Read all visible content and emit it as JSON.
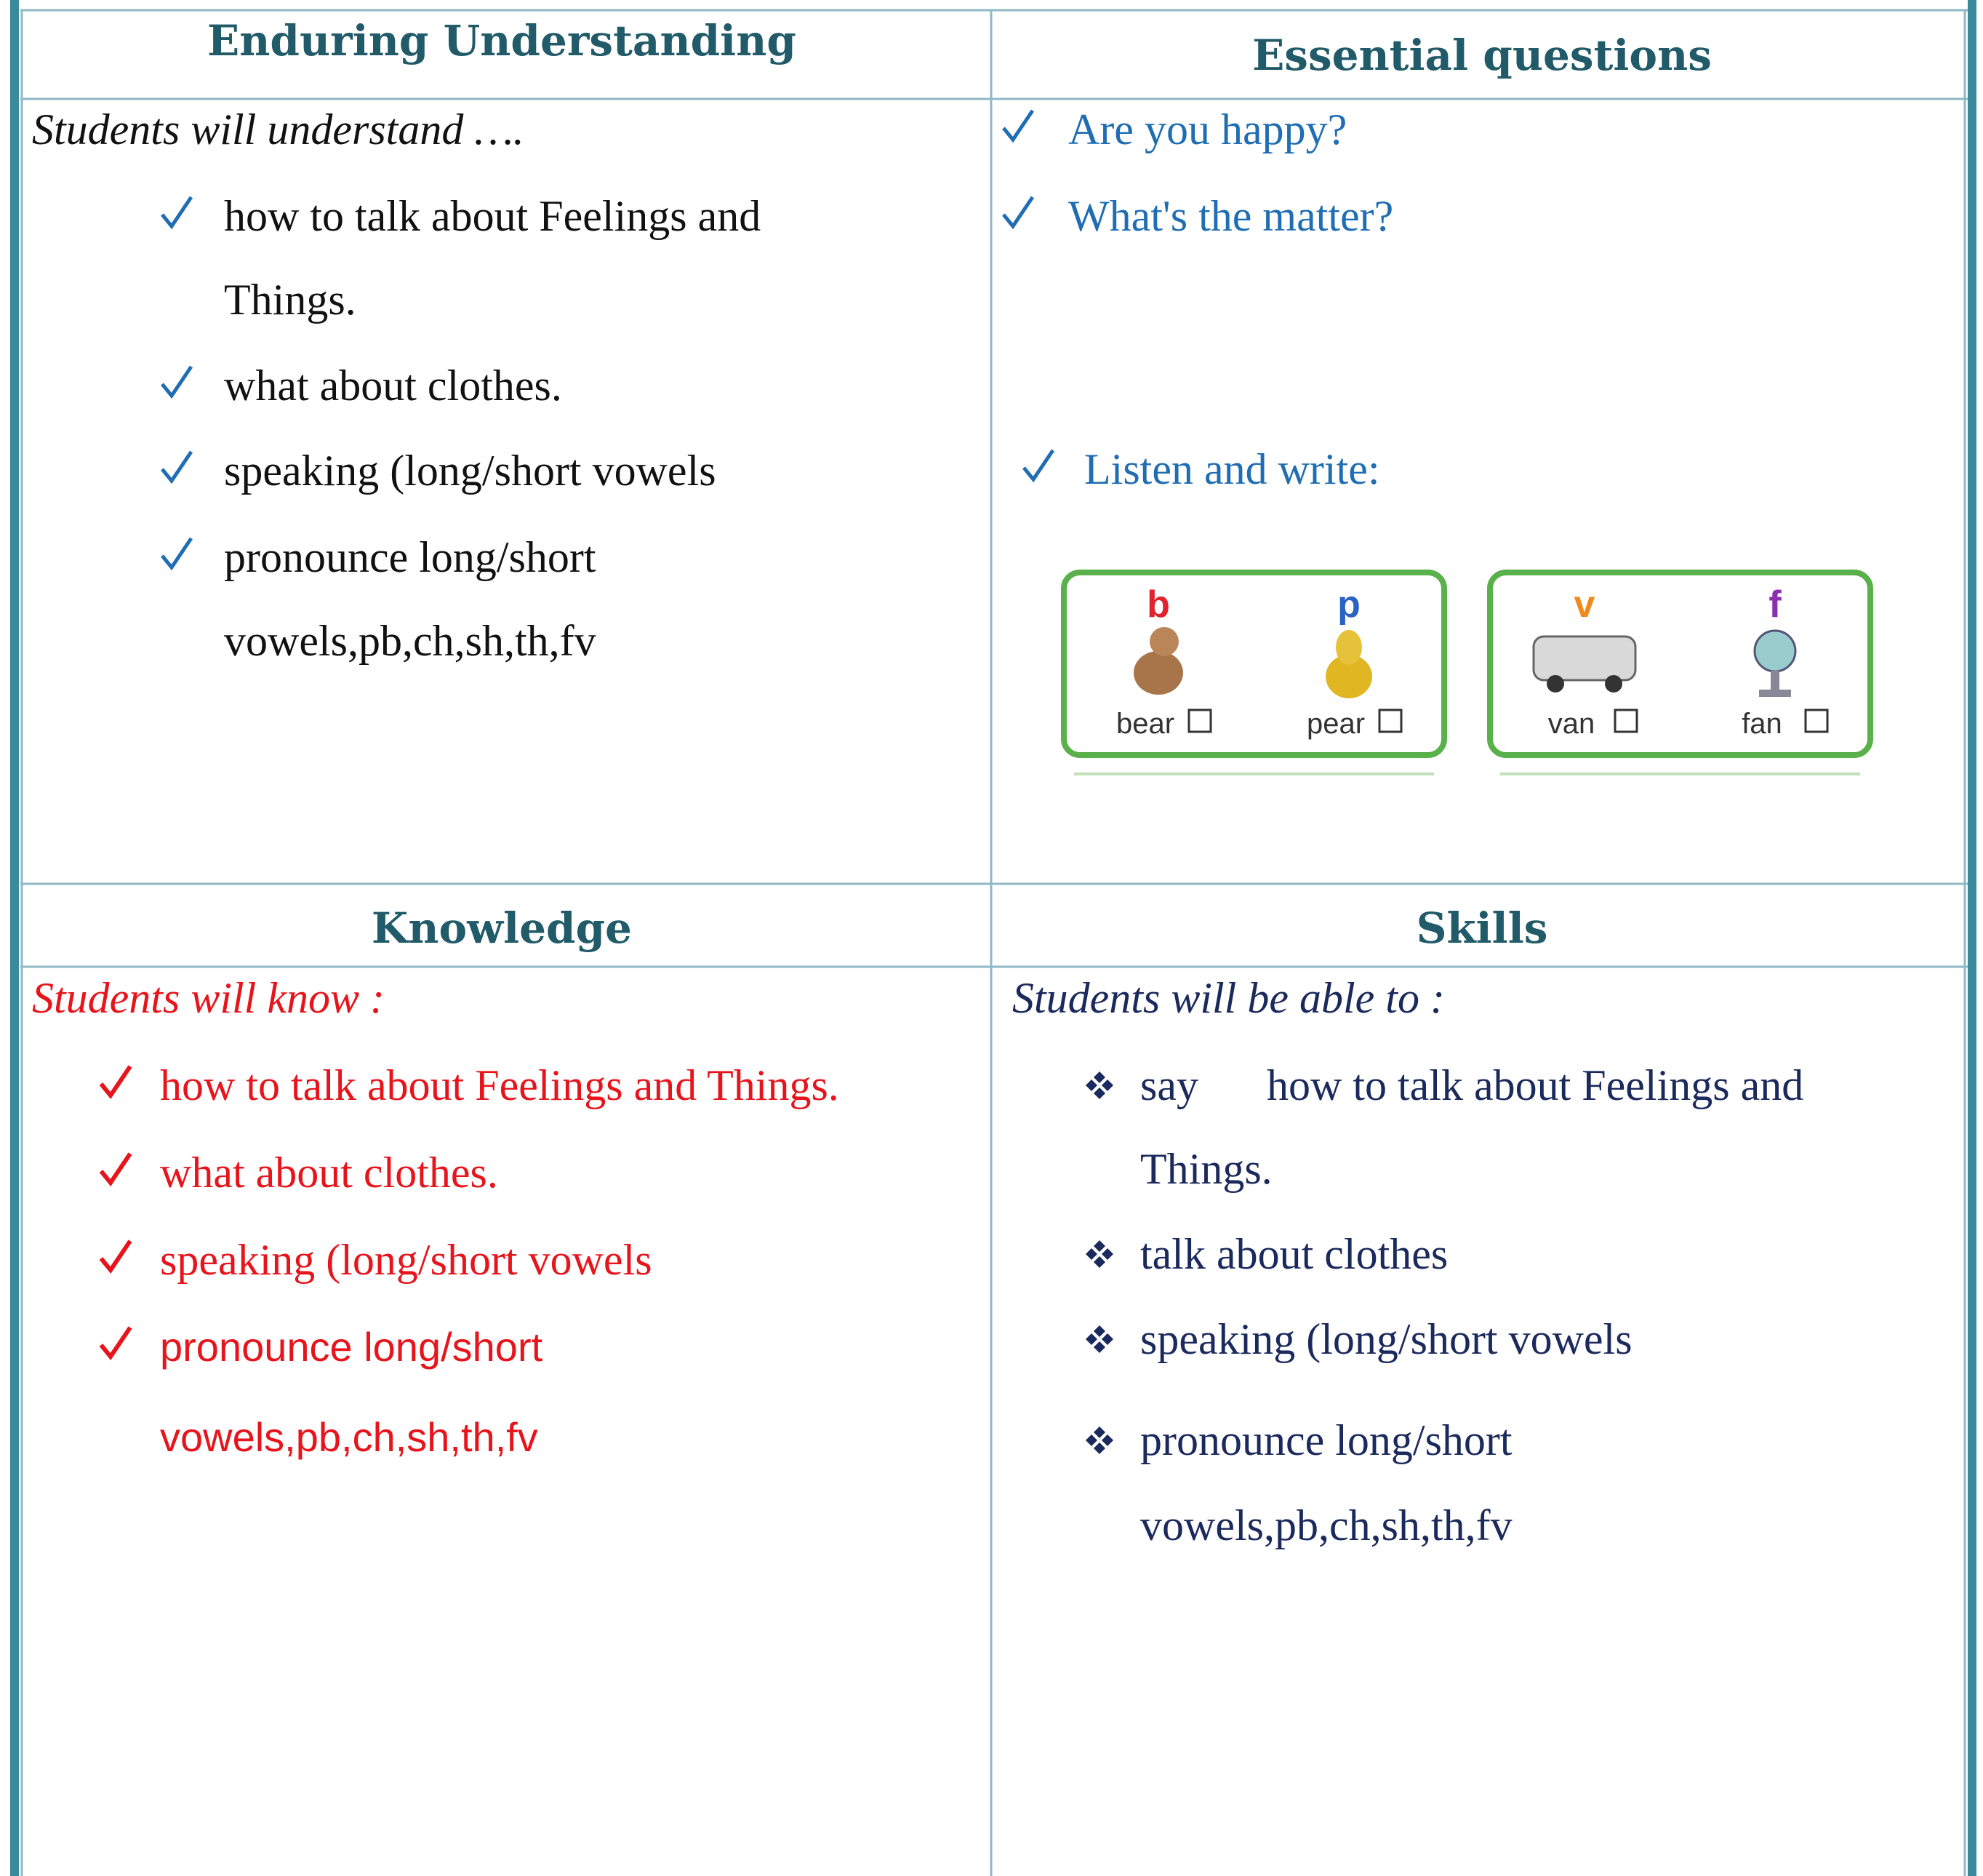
{
  "enduring_understanding": {
    "heading": "Enduring Understanding",
    "intro": "Students will understand ….",
    "items": [
      [
        "how to talk about Feelings and",
        "Things."
      ],
      [
        "what about clothes."
      ],
      [
        "speaking (long/short vowels"
      ],
      [
        "pronounce long/short",
        "vowels,pb,ch,sh,th,fv"
      ]
    ]
  },
  "essential_questions": {
    "heading": "Essential questions",
    "items": [
      "Are you happy?",
      "What's the matter?"
    ],
    "activity": "Listen and write:",
    "cards": [
      [
        {
          "letter": "b",
          "word": "bear"
        },
        {
          "letter": "p",
          "word": "pear"
        }
      ],
      [
        {
          "letter": "v",
          "word": "van"
        },
        {
          "letter": "f",
          "word": "fan"
        }
      ]
    ]
  },
  "knowledge": {
    "heading": "Knowledge",
    "intro": "Students will know :",
    "items": [
      [
        "how to talk about Feelings and Things."
      ],
      [
        "what about clothes."
      ],
      [
        "speaking (long/short vowels"
      ],
      [
        "pronounce long/short",
        "vowels,pb,ch,sh,th,fv"
      ]
    ]
  },
  "skills": {
    "heading": "Skills",
    "intro": "Students will be able to :",
    "items": [
      [
        "say",
        "how to talk about Feelings and",
        "Things."
      ],
      [
        "talk about clothes"
      ],
      [
        "speaking (long/short vowels"
      ],
      [
        "pronounce long/short",
        "vowels,pb,ch,sh,th,fv"
      ]
    ]
  }
}
